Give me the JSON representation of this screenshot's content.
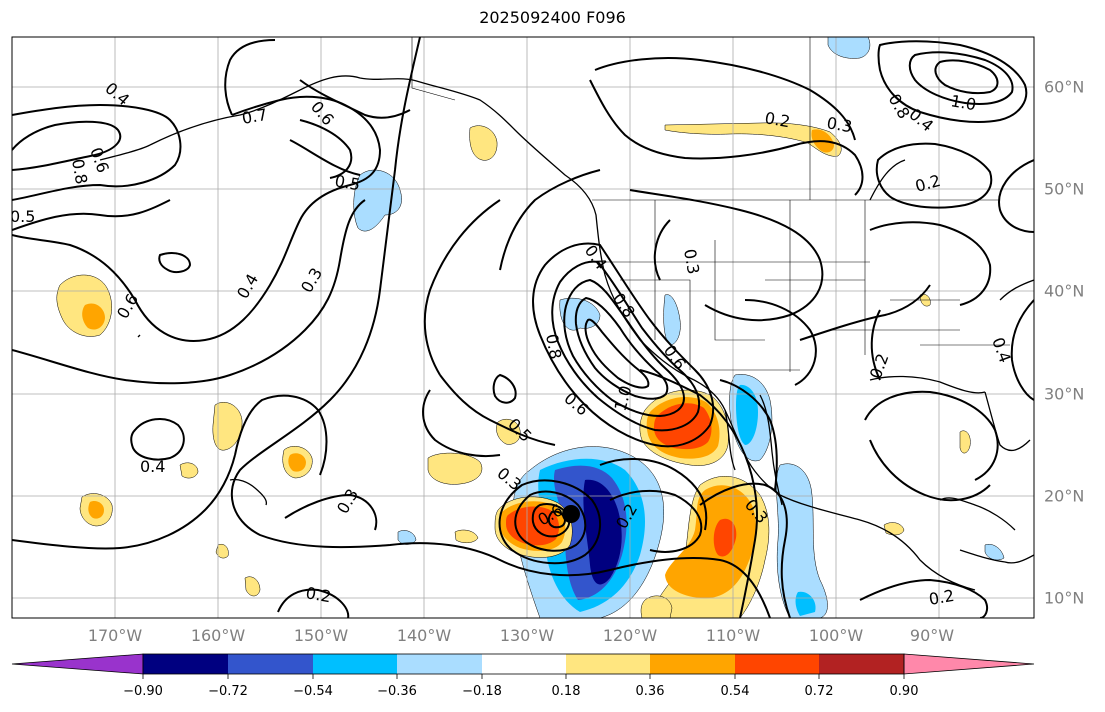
{
  "title": "2025092400 F096",
  "lon_labels": [
    "170°W",
    "160°W",
    "150°W",
    "140°W",
    "130°W",
    "120°W",
    "110°W",
    "100°W",
    "90°W"
  ],
  "lat_labels": [
    "60°N",
    "50°N",
    "40°N",
    "30°N",
    "20°N",
    "10°N"
  ],
  "colorbar": {
    "labels": [
      "−0.90",
      "−0.72",
      "−0.54",
      "−0.36",
      "−0.18",
      "0.18",
      "0.36",
      "0.54",
      "0.72",
      "0.90"
    ],
    "colors": [
      "#9933cc",
      "#000080",
      "#3355cc",
      "#00bfff",
      "#aaddff",
      "#ffffff",
      "#ffe680",
      "#ffa500",
      "#ff4500",
      "#b22222",
      "#ff88aa"
    ]
  },
  "contour_labels": [
    "0.4",
    "0.7",
    "0.6",
    "0.5",
    "0.8",
    "0.6",
    "0.5",
    "0.4",
    "0.6",
    "0.3",
    "0.4",
    "0.3",
    "0.2",
    "0.3",
    "0.8",
    "1.0",
    "0.2",
    "0.8",
    "0.6",
    "0.4",
    "0.8",
    "1.0",
    "0.6",
    "0.5",
    "0.6",
    "0.3",
    "0.2",
    "0.4",
    "0.3",
    "0.2",
    "0.3",
    "0.2",
    "0.2",
    "0.4"
  ],
  "marker": "storm-center-dot"
}
